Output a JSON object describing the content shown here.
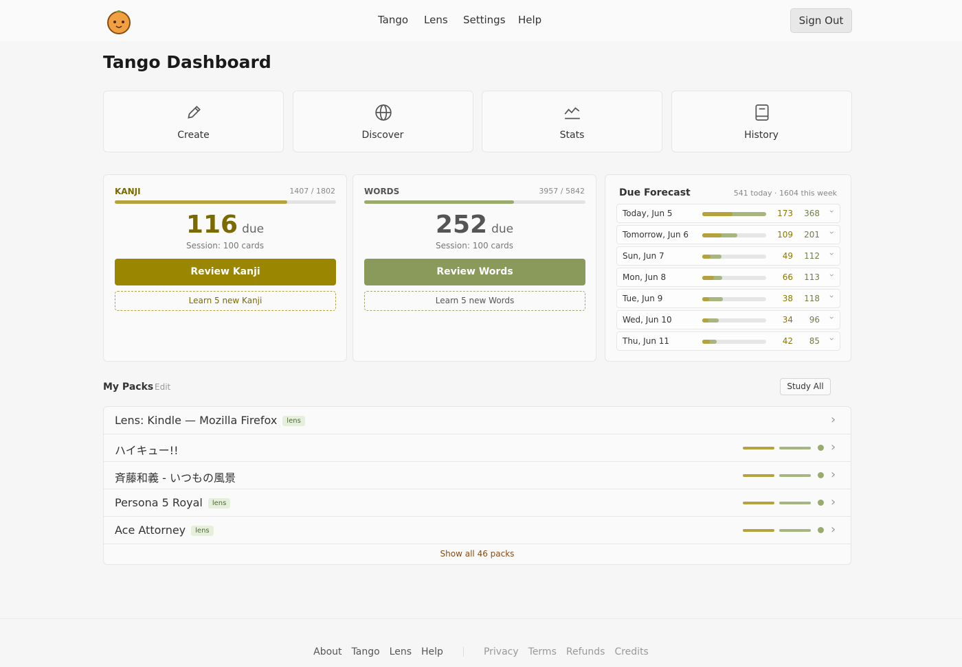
{
  "header": {
    "nav": [
      "Tango",
      "Lens",
      "Settings",
      "Help"
    ],
    "sign_out": "Sign Out"
  },
  "title": "Tango Dashboard",
  "actions": [
    "Create",
    "Discover",
    "Stats",
    "History"
  ],
  "decks": [
    {
      "label": "KANJI",
      "progress": "1407 / 1802",
      "due": 116,
      "due_label": "due",
      "session": "Session: 100 cards",
      "review": "Review Kanji",
      "learn": "Learn 5 new Kanji"
    },
    {
      "label": "WORDS",
      "progress": "3957 / 5842",
      "due": 252,
      "due_label": "due",
      "session": "Session: 100 cards",
      "review": "Review Words",
      "learn": "Learn 5 new Words"
    }
  ],
  "forecast": {
    "title": "Due Forecast",
    "summary": "541 today · 1604 this week",
    "rows": [
      {
        "label": "Today, Jun 5",
        "due": 173,
        "total": 368
      },
      {
        "label": "Tomorrow, Jun 6",
        "due": 109,
        "total": 201
      },
      {
        "label": "Sun, Jun 7",
        "due": 49,
        "total": 112
      },
      {
        "label": "Mon, Jun 8",
        "due": 66,
        "total": 113
      },
      {
        "label": "Tue, Jun 9",
        "due": 38,
        "total": 118
      },
      {
        "label": "Wed, Jun 10",
        "due": 34,
        "total": 96
      },
      {
        "label": "Thu, Jun 11",
        "due": 42,
        "total": 85
      }
    ]
  },
  "packs": {
    "title": "My Packs",
    "edit": "Edit",
    "study_all": "Study All",
    "items": [
      {
        "name": "Lens: Kindle — Mozilla Firefox",
        "tag": "lens"
      },
      {
        "name": "ハイキュー!!"
      },
      {
        "name": "斉藤和義 - いつもの風景"
      },
      {
        "name": "Persona 5 Royal",
        "tag": "lens"
      },
      {
        "name": "Ace Attorney",
        "tag": "lens"
      }
    ],
    "show_all": "Show all 46 packs"
  },
  "footer": {
    "links": [
      "About",
      "Tango",
      "Lens",
      "Help"
    ],
    "legal": [
      "Privacy",
      "Terms",
      "Refunds",
      "Credits"
    ]
  }
}
